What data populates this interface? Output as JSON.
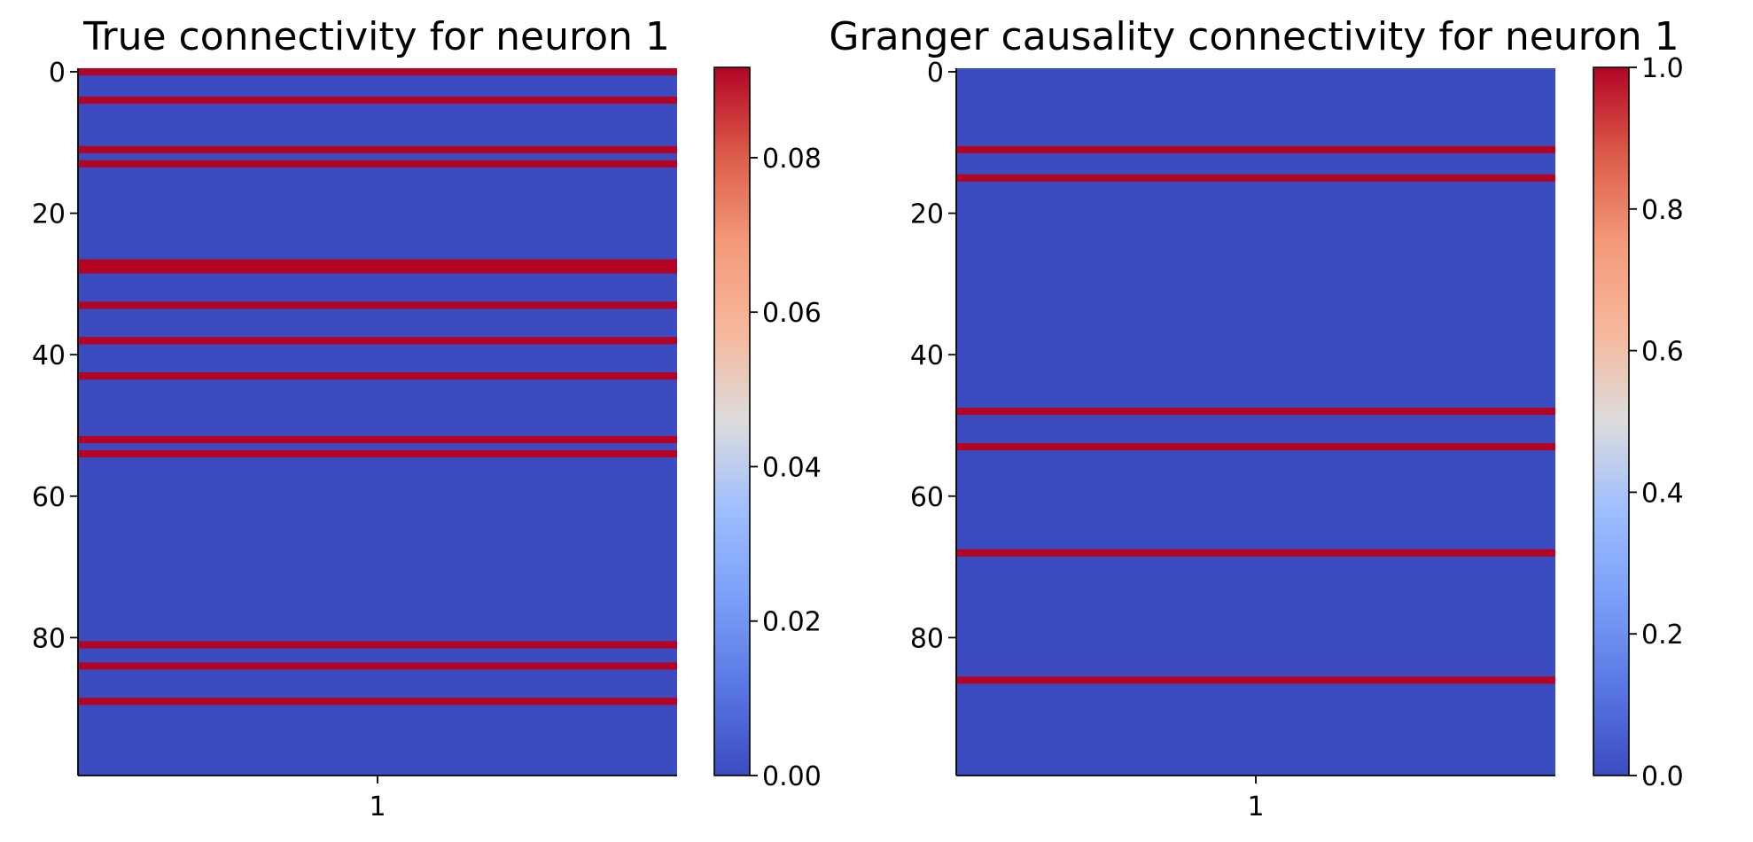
{
  "chart_data": [
    {
      "type": "heatmap",
      "title": "True connectivity for neuron 1",
      "xlabel": "",
      "ylabel": "",
      "x_categories": [
        "1"
      ],
      "n_rows": 100,
      "y_ticks": [
        0,
        20,
        40,
        60,
        80
      ],
      "y_tick_labels": [
        "0",
        "20",
        "40",
        "60",
        "80"
      ],
      "x_tick_labels": [
        "1"
      ],
      "nonzero_rows": [
        0,
        4,
        11,
        13,
        27,
        28,
        33,
        38,
        43,
        52,
        54,
        81,
        84,
        89
      ],
      "nonzero_value": 0.0917,
      "baseline_value": 0,
      "colorbar": {
        "colormap": "coolwarm",
        "range": [
          0,
          0.0917
        ],
        "ticks": [
          0,
          0.02,
          0.04,
          0.06,
          0.08
        ],
        "tick_labels": [
          "0.00",
          "0.02",
          "0.04",
          "0.06",
          "0.08"
        ]
      }
    },
    {
      "type": "heatmap",
      "title": "Granger causality connectivity for neuron 1",
      "xlabel": "",
      "ylabel": "",
      "x_categories": [
        "1"
      ],
      "n_rows": 100,
      "y_ticks": [
        0,
        20,
        40,
        60,
        80
      ],
      "y_tick_labels": [
        "0",
        "20",
        "40",
        "60",
        "80"
      ],
      "x_tick_labels": [
        "1"
      ],
      "nonzero_rows": [
        11,
        15,
        48,
        53,
        68,
        86
      ],
      "nonzero_value": 1.0,
      "baseline_value": 0,
      "colorbar": {
        "colormap": "coolwarm",
        "range": [
          0,
          1.0
        ],
        "ticks": [
          0,
          0.2,
          0.4,
          0.6,
          0.8,
          1.0
        ],
        "tick_labels": [
          "0.0",
          "0.2",
          "0.4",
          "0.6",
          "0.8",
          "1.0"
        ]
      }
    }
  ],
  "colors": {
    "low": "#3b4cc0",
    "high": "#b40426"
  }
}
